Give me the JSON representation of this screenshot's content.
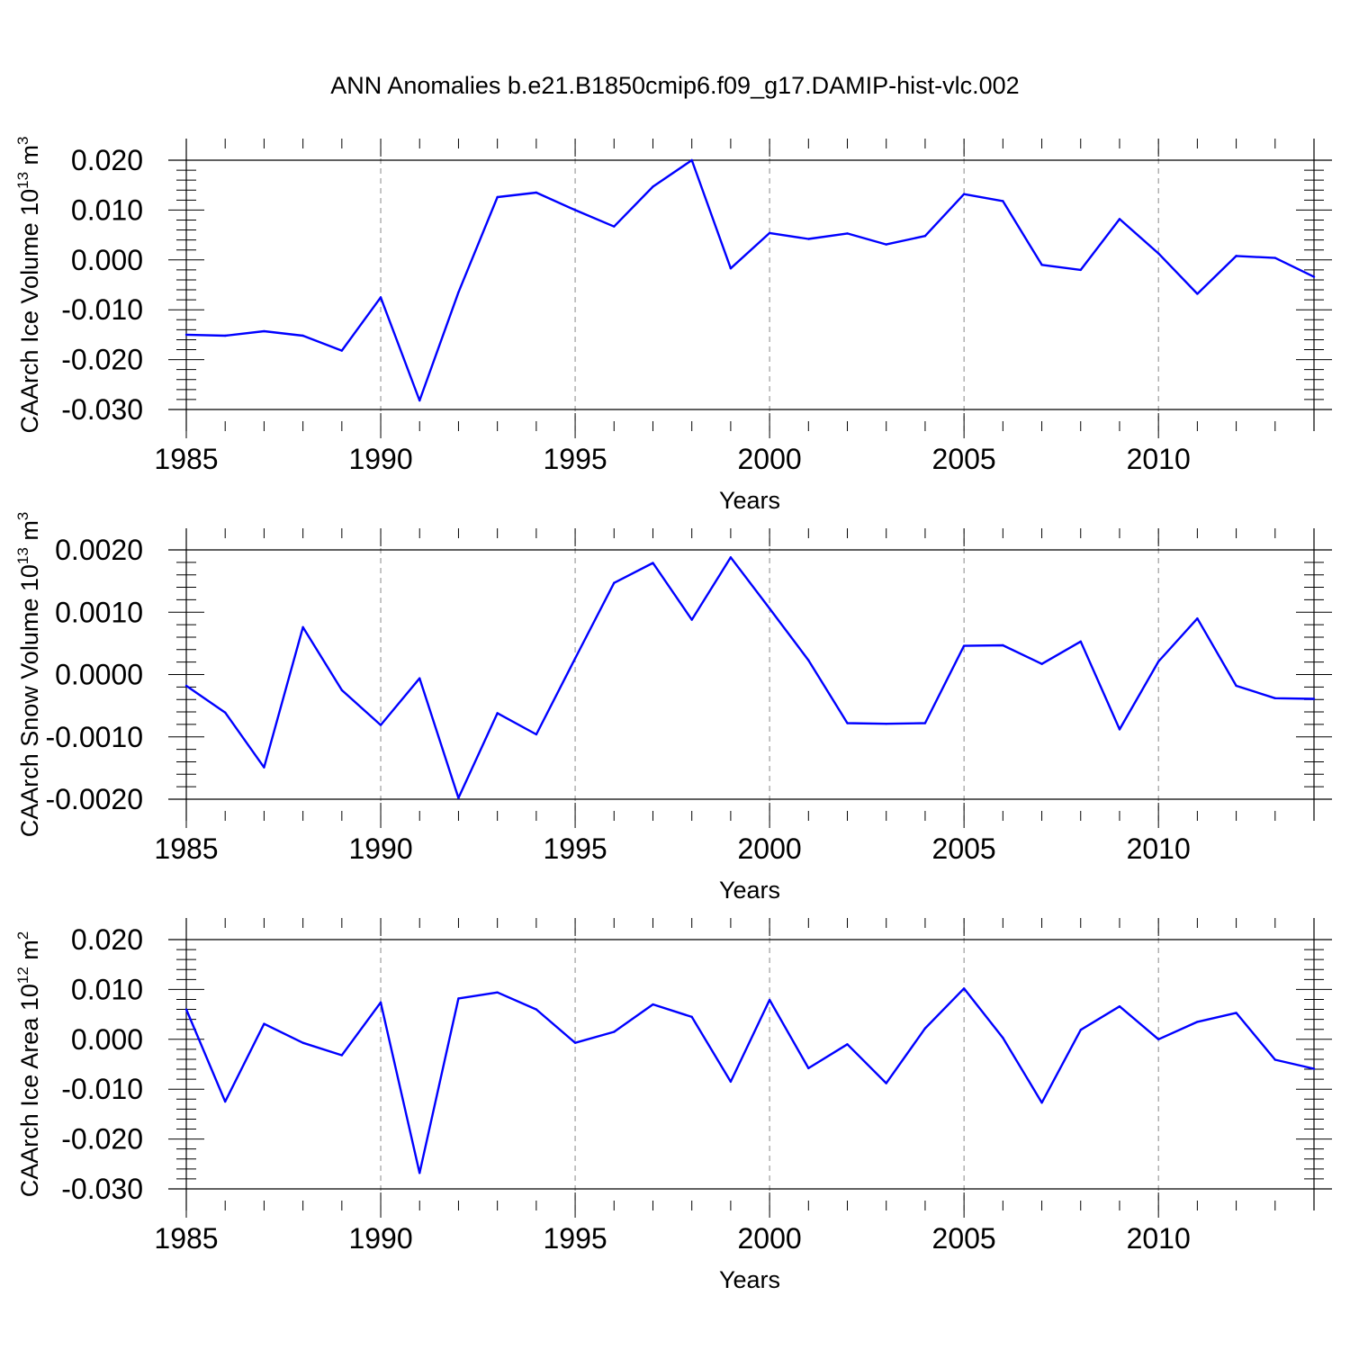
{
  "chart_data": {
    "title": "ANN Anomalies b.e21.B1850cmip6.f09_g17.DAMIP-hist-vlc.002",
    "line_color": "#0000ff",
    "x_tick_labels": [
      "1985",
      "1990",
      "1995",
      "2000",
      "2005",
      "2010"
    ],
    "panels": [
      {
        "type": "line",
        "ylabel": "CAArch Ice Volume 10",
        "ylabel_exp": "13",
        "ylabel_unit": "m",
        "ylabel_unit_exp": "3",
        "xlabel": "Years",
        "xlim": [
          1985,
          2014
        ],
        "ylim": [
          -0.03,
          0.02
        ],
        "yticks": [
          -0.03,
          -0.02,
          -0.01,
          0.0,
          0.01,
          0.02
        ],
        "ytick_labels": [
          "-0.030",
          "-0.020",
          "-0.010",
          "0.000",
          "0.010",
          "0.020"
        ],
        "x": [
          1985,
          1986,
          1987,
          1988,
          1989,
          1990,
          1991,
          1992,
          1993,
          1994,
          1995,
          1996,
          1997,
          1998,
          1999,
          2000,
          2001,
          2002,
          2003,
          2004,
          2005,
          2006,
          2007,
          2008,
          2009,
          2010,
          2011,
          2012,
          2013,
          2014
        ],
        "y": [
          -0.015,
          -0.0152,
          -0.0143,
          -0.0152,
          -0.0182,
          -0.0075,
          -0.0282,
          -0.0065,
          0.0126,
          0.0135,
          0.01,
          0.0067,
          0.0147,
          0.02,
          -0.0017,
          0.0054,
          0.0042,
          0.0053,
          0.0031,
          0.0048,
          0.0132,
          0.0118,
          -0.001,
          -0.002,
          0.0082,
          0.0013,
          -0.0068,
          0.0008,
          0.0004,
          -0.0034
        ]
      },
      {
        "type": "line",
        "ylabel": "CAArch Snow Volume 10",
        "ylabel_exp": "13",
        "ylabel_unit": "m",
        "ylabel_unit_exp": "3",
        "xlabel": "Years",
        "xlim": [
          1985,
          2014
        ],
        "ylim": [
          -0.002,
          0.002
        ],
        "yticks": [
          -0.002,
          -0.001,
          0.0,
          0.001,
          0.002
        ],
        "ytick_labels": [
          "-0.0020",
          "-0.0010",
          "0.0000",
          "0.0010",
          "0.0020"
        ],
        "x": [
          1985,
          1986,
          1987,
          1988,
          1989,
          1990,
          1991,
          1992,
          1993,
          1994,
          1995,
          1996,
          1997,
          1998,
          1999,
          2000,
          2001,
          2002,
          2003,
          2004,
          2005,
          2006,
          2007,
          2008,
          2009,
          2010,
          2011,
          2012,
          2013,
          2014
        ],
        "y": [
          -0.00018,
          -0.00061,
          -0.00149,
          0.00076,
          -0.00025,
          -0.00081,
          -6e-05,
          -0.00198,
          -0.00062,
          -0.00096,
          0.00026,
          0.00147,
          0.00179,
          0.00088,
          0.00188,
          0.00106,
          0.00023,
          -0.00078,
          -0.00079,
          -0.00078,
          0.00046,
          0.00047,
          0.00017,
          0.00053,
          -0.00088,
          0.00021,
          0.0009,
          -0.00018,
          -0.00038,
          -0.00039
        ]
      },
      {
        "type": "line",
        "ylabel": "CAArch Ice Area 10",
        "ylabel_exp": "12",
        "ylabel_unit": "m",
        "ylabel_unit_exp": "2",
        "xlabel": "Years",
        "xlim": [
          1985,
          2014
        ],
        "ylim": [
          -0.03,
          0.02
        ],
        "yticks": [
          -0.03,
          -0.02,
          -0.01,
          0.0,
          0.01,
          0.02
        ],
        "ytick_labels": [
          "-0.030",
          "-0.020",
          "-0.010",
          "0.000",
          "0.010",
          "0.020"
        ],
        "x": [
          1985,
          1986,
          1987,
          1988,
          1989,
          1990,
          1991,
          1992,
          1993,
          1994,
          1995,
          1996,
          1997,
          1998,
          1999,
          2000,
          2001,
          2002,
          2003,
          2004,
          2005,
          2006,
          2007,
          2008,
          2009,
          2010,
          2011,
          2012,
          2013,
          2014
        ],
        "y": [
          0.006,
          -0.0125,
          0.0031,
          -0.0007,
          -0.0032,
          0.0074,
          -0.0268,
          0.0082,
          0.0094,
          0.006,
          -0.0007,
          0.0015,
          0.007,
          0.0045,
          -0.0085,
          0.0079,
          -0.0058,
          -0.001,
          -0.0088,
          0.0022,
          0.0102,
          0.0003,
          -0.0127,
          0.0019,
          0.0066,
          0.0,
          0.0035,
          0.0053,
          -0.0041,
          -0.0059
        ]
      }
    ]
  }
}
